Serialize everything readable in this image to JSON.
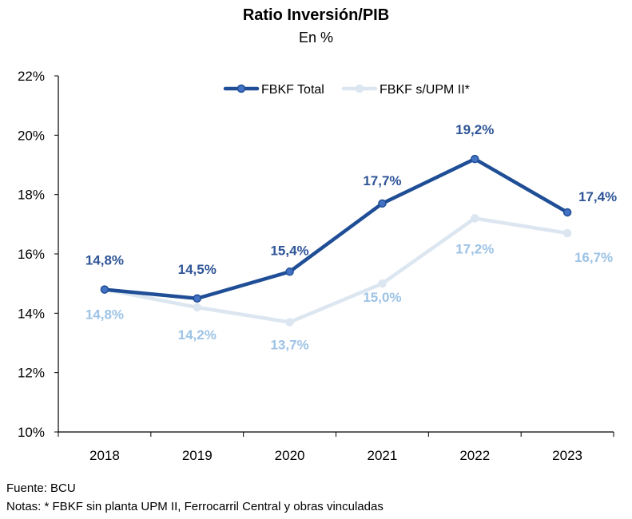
{
  "chart_data": {
    "type": "line",
    "title": "Ratio Inversión/PIB",
    "subtitle": "En %",
    "categories": [
      "2018",
      "2019",
      "2020",
      "2021",
      "2022",
      "2023"
    ],
    "y_ticks": [
      "10%",
      "12%",
      "14%",
      "16%",
      "18%",
      "20%",
      "22%"
    ],
    "ylim": [
      10,
      22
    ],
    "legend_position": "top",
    "grid": false,
    "series": [
      {
        "name": "FBKF Total",
        "color": "#1F4E96",
        "label_color": "#2F5597",
        "values": [
          14.8,
          14.5,
          15.4,
          17.7,
          19.2,
          17.4
        ],
        "labels": [
          "14,8%",
          "14,5%",
          "15,4%",
          "17,7%",
          "19,2%",
          "17,4%"
        ]
      },
      {
        "name": "FBKF s/UPM II*",
        "color": "#DCE6F0",
        "label_color": "#9DC3E6",
        "values": [
          14.8,
          14.2,
          13.7,
          15.0,
          17.2,
          16.7
        ],
        "labels": [
          "14,8%",
          "14,2%",
          "13,7%",
          "15,0%",
          "17,2%",
          "16,7%"
        ]
      }
    ]
  },
  "footer": {
    "source": "Fuente: BCU",
    "notes": "Notas: * FBKF sin planta UPM II, Ferrocarril Central y obras vinculadas"
  }
}
